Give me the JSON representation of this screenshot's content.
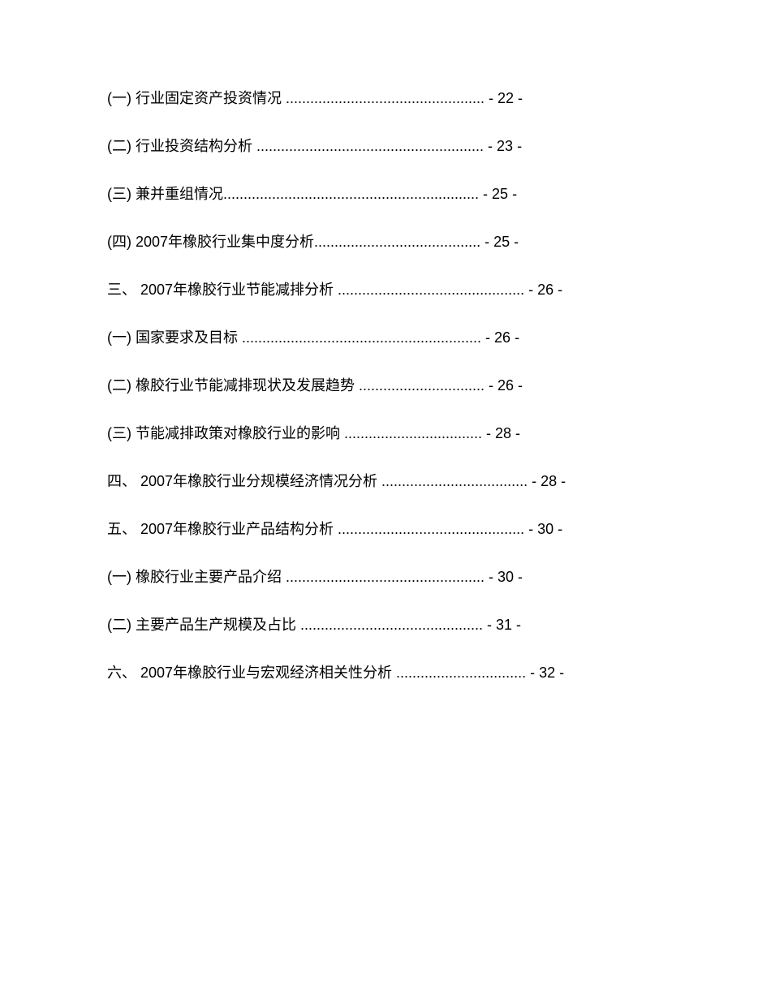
{
  "page": {
    "background_color": "#ffffff",
    "text_color": "#000000",
    "font_size": 18,
    "font_family": "Microsoft YaHei"
  },
  "toc_entries": [
    {
      "text": "(一) 行业固定资产投资情况 ................................................. - 22 -"
    },
    {
      "text": "(二) 行业投资结构分析 ........................................................ - 23 -"
    },
    {
      "text": "(三) 兼并重组情况............................................................... - 25 -"
    },
    {
      "text": "(四) 2007年橡胶行业集中度分析......................................... - 25 -"
    },
    {
      "text": "三、 2007年橡胶行业节能减排分析 .............................................. - 26 -"
    },
    {
      "text": "(一) 国家要求及目标 ........................................................... - 26 -"
    },
    {
      "text": "(二) 橡胶行业节能减排现状及发展趋势 ............................... - 26 -"
    },
    {
      "text": "(三) 节能减排政策对橡胶行业的影响 .................................. - 28 -"
    },
    {
      "text": "四、 2007年橡胶行业分规模经济情况分析 .................................... - 28 -"
    },
    {
      "text": "五、 2007年橡胶行业产品结构分析 .............................................. - 30 -"
    },
    {
      "text": "(一) 橡胶行业主要产品介绍 ................................................. - 30 -"
    },
    {
      "text": "(二) 主要产品生产规模及占比 ............................................. - 31 -"
    },
    {
      "text": "六、 2007年橡胶行业与宏观经济相关性分析 ................................ - 32 -"
    }
  ]
}
